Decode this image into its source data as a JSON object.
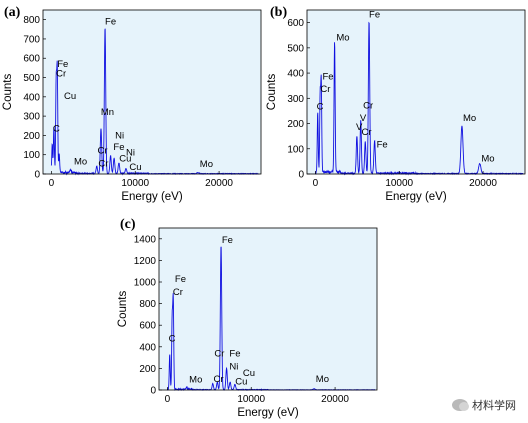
{
  "chart_data": [
    {
      "type": "line",
      "panel": "(a)",
      "xlabel": "Energy (eV)",
      "ylabel": "Counts",
      "xlim": [
        -1000,
        25000
      ],
      "ylim": [
        0,
        850
      ],
      "xticks": [
        0,
        10000,
        20000
      ],
      "yticks": [
        0,
        100,
        200,
        300,
        400,
        500,
        600,
        700,
        800
      ],
      "color": "#1010e0",
      "background": "#e6f3fb",
      "peaks": [
        {
          "x": 100,
          "y": 150
        },
        {
          "x": 300,
          "y": 240
        },
        {
          "x": 570,
          "y": 470
        },
        {
          "x": 700,
          "y": 540
        },
        {
          "x": 930,
          "y": 95
        },
        {
          "x": 2290,
          "y": 14
        },
        {
          "x": 5410,
          "y": 40
        },
        {
          "x": 5950,
          "y": 75
        },
        {
          "x": 6400,
          "y": 760
        },
        {
          "x": 5900,
          "y": 170
        },
        {
          "x": 7060,
          "y": 95
        },
        {
          "x": 7480,
          "y": 80
        },
        {
          "x": 8050,
          "y": 55
        },
        {
          "x": 8900,
          "y": 25
        },
        {
          "x": 17480,
          "y": 6
        }
      ],
      "labels": [
        {
          "text": "Fe",
          "x": 700,
          "y": 555
        },
        {
          "text": "Cr",
          "x": 560,
          "y": 505
        },
        {
          "text": "Cu",
          "x": 1500,
          "y": 390
        },
        {
          "text": "C",
          "x": 200,
          "y": 220
        },
        {
          "text": "Mo",
          "x": 2700,
          "y": 50
        },
        {
          "text": "Fe",
          "x": 6400,
          "y": 775
        },
        {
          "text": "Mn",
          "x": 5900,
          "y": 305
        },
        {
          "text": "Ni",
          "x": 7600,
          "y": 185
        },
        {
          "text": "Fe",
          "x": 7400,
          "y": 125
        },
        {
          "text": "Cr",
          "x": 5500,
          "y": 105
        },
        {
          "text": "Ni",
          "x": 8900,
          "y": 95
        },
        {
          "text": "Cr",
          "x": 5600,
          "y": 40
        },
        {
          "text": "Cu",
          "x": 8100,
          "y": 65
        },
        {
          "text": "Cu",
          "x": 9300,
          "y": 20
        },
        {
          "text": "Mo",
          "x": 17700,
          "y": 35
        }
      ]
    },
    {
      "type": "line",
      "panel": "(b)",
      "xlabel": "Energy (eV)",
      "ylabel": "Counts",
      "xlim": [
        -1000,
        25000
      ],
      "ylim": [
        0,
        650
      ],
      "xticks": [
        0,
        10000,
        20000
      ],
      "yticks": [
        0,
        100,
        200,
        300,
        400,
        500,
        600
      ],
      "color": "#1010e0",
      "background": "#e6f3fb",
      "peaks": [
        {
          "x": 280,
          "y": 240
        },
        {
          "x": 570,
          "y": 300
        },
        {
          "x": 700,
          "y": 360
        },
        {
          "x": 2290,
          "y": 520
        },
        {
          "x": 4950,
          "y": 150
        },
        {
          "x": 5410,
          "y": 210
        },
        {
          "x": 5950,
          "y": 125
        },
        {
          "x": 6400,
          "y": 605
        },
        {
          "x": 7060,
          "y": 130
        },
        {
          "x": 17480,
          "y": 190
        },
        {
          "x": 19600,
          "y": 40
        }
      ],
      "labels": [
        {
          "text": "C",
          "x": 150,
          "y": 255
        },
        {
          "text": "Cr",
          "x": 600,
          "y": 325
        },
        {
          "text": "Fe",
          "x": 850,
          "y": 375
        },
        {
          "text": "Mo",
          "x": 2500,
          "y": 530
        },
        {
          "text": "Fe",
          "x": 6400,
          "y": 620
        },
        {
          "text": "Cr",
          "x": 5700,
          "y": 260
        },
        {
          "text": "V",
          "x": 5300,
          "y": 210
        },
        {
          "text": "V",
          "x": 4850,
          "y": 175
        },
        {
          "text": "Cr",
          "x": 5500,
          "y": 155
        },
        {
          "text": "Fe",
          "x": 7300,
          "y": 105
        },
        {
          "text": "Mo",
          "x": 17600,
          "y": 210
        },
        {
          "text": "Mo",
          "x": 19800,
          "y": 50
        }
      ]
    },
    {
      "type": "line",
      "panel": "(c)",
      "xlabel": "Energy (eV)",
      "ylabel": "Counts",
      "xlim": [
        -1000,
        25000
      ],
      "ylim": [
        0,
        1500
      ],
      "xticks": [
        0,
        10000,
        20000
      ],
      "yticks": [
        0,
        200,
        400,
        600,
        800,
        1000,
        1200,
        1400
      ],
      "color": "#1010e0",
      "background": "#e6f3fb",
      "peaks": [
        {
          "x": 280,
          "y": 330
        },
        {
          "x": 570,
          "y": 650
        },
        {
          "x": 700,
          "y": 830
        },
        {
          "x": 2290,
          "y": 20
        },
        {
          "x": 5410,
          "y": 60
        },
        {
          "x": 5950,
          "y": 70
        },
        {
          "x": 6400,
          "y": 1340
        },
        {
          "x": 7060,
          "y": 200
        },
        {
          "x": 7480,
          "y": 70
        },
        {
          "x": 8050,
          "y": 50
        },
        {
          "x": 17480,
          "y": 10
        }
      ],
      "labels": [
        {
          "text": "Fe",
          "x": 900,
          "y": 1000
        },
        {
          "text": "Cr",
          "x": 650,
          "y": 880
        },
        {
          "text": "C",
          "x": 150,
          "y": 450
        },
        {
          "text": "Mo",
          "x": 2600,
          "y": 70
        },
        {
          "text": "Fe",
          "x": 6500,
          "y": 1360
        },
        {
          "text": "Cr",
          "x": 5600,
          "y": 310
        },
        {
          "text": "Fe",
          "x": 7400,
          "y": 310
        },
        {
          "text": "Ni",
          "x": 7400,
          "y": 190
        },
        {
          "text": "Cr",
          "x": 5500,
          "y": 75
        },
        {
          "text": "Cu",
          "x": 8100,
          "y": 50
        },
        {
          "text": "Cu",
          "x": 9000,
          "y": 130
        },
        {
          "text": "Mo",
          "x": 17700,
          "y": 75
        }
      ]
    }
  ],
  "watermark": {
    "text": "材料学网",
    "icon": "wechat-icon"
  }
}
